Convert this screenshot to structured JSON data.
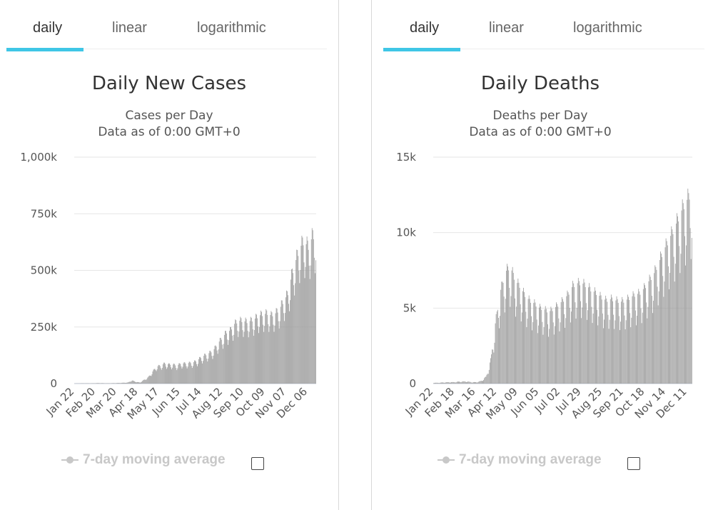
{
  "tabs": [
    "daily",
    "linear",
    "logarithmic"
  ],
  "active_tab": "daily",
  "legend_label": "7-day moving average",
  "colors": {
    "bar": "#9a9a9a",
    "tab_underline": "#3fc6e6",
    "grid": "#e6e6e6",
    "legend": "#c8c8c8"
  },
  "chart_data": [
    {
      "type": "bar",
      "title": "Daily New Cases",
      "subtitle": "Cases per Day",
      "note": "Data as of 0:00 GMT+0",
      "start_date": "2020-01-22",
      "end_date": "2020-12-17",
      "xlabels": [
        "Jan 22",
        "Feb 20",
        "Mar 20",
        "Apr 18",
        "May 17",
        "Jun 15",
        "Jul 14",
        "Aug 12",
        "Sep 10",
        "Oct 09",
        "Nov 07",
        "Dec 06"
      ],
      "ylim": [
        0,
        1000000
      ],
      "yticks": [
        0,
        250000,
        500000,
        750000,
        1000000
      ],
      "ytick_labels": [
        "0",
        "250k",
        "500k",
        "750k",
        "1,000k"
      ],
      "weekly_peaks": [
        600,
        800,
        1500,
        1500,
        1200,
        2000,
        2500,
        2000,
        1500,
        1800,
        2500,
        3000,
        4000,
        5000,
        15000,
        8000,
        5000,
        18000,
        30000,
        55000,
        80000,
        85000,
        95000,
        90000,
        90000,
        85000,
        95000,
        95000,
        97000,
        100000,
        110000,
        125000,
        135000,
        145000,
        160000,
        190000,
        215000,
        240000,
        250000,
        280000,
        295000,
        295000,
        290000,
        295000,
        305000,
        320000,
        325000,
        330000,
        320000,
        330000,
        350000,
        390000,
        420000,
        510000,
        580000,
        640000,
        670000,
        640000,
        690000,
        700000
      ],
      "weekday_factors": [
        0.7,
        0.78,
        0.94,
        1.0,
        0.98,
        0.92,
        0.8
      ]
    },
    {
      "type": "bar",
      "title": "Daily Deaths",
      "subtitle": "Deaths per Day",
      "note": "Data as of 0:00 GMT+0",
      "start_date": "2020-01-22",
      "end_date": "2020-12-17",
      "xlabels": [
        "Jan 22",
        "Feb 18",
        "Mar 16",
        "Apr 12",
        "May 09",
        "Jun 05",
        "Jul 02",
        "Jul 29",
        "Aug 25",
        "Sep 21",
        "Oct 18",
        "Nov 14",
        "Dec 11"
      ],
      "ylim": [
        0,
        15000
      ],
      "yticks": [
        0,
        5000,
        10000,
        15000
      ],
      "ytick_labels": [
        "0",
        "5k",
        "10k",
        "15k"
      ],
      "weekly_peaks": [
        50,
        60,
        80,
        100,
        100,
        130,
        150,
        150,
        100,
        100,
        200,
        500,
        1800,
        4500,
        6500,
        7800,
        8200,
        7200,
        6800,
        6200,
        5800,
        5600,
        5300,
        5200,
        5000,
        5200,
        5500,
        5800,
        6200,
        6800,
        7000,
        7000,
        6800,
        6500,
        6300,
        6000,
        5800,
        5900,
        5800,
        5700,
        5800,
        6000,
        6200,
        6300,
        6700,
        7200,
        7700,
        8500,
        9300,
        10000,
        10700,
        11500,
        12300,
        12900,
        13500
      ],
      "weekday_factors": [
        0.62,
        0.72,
        0.95,
        1.0,
        0.97,
        0.93,
        0.78
      ]
    }
  ]
}
